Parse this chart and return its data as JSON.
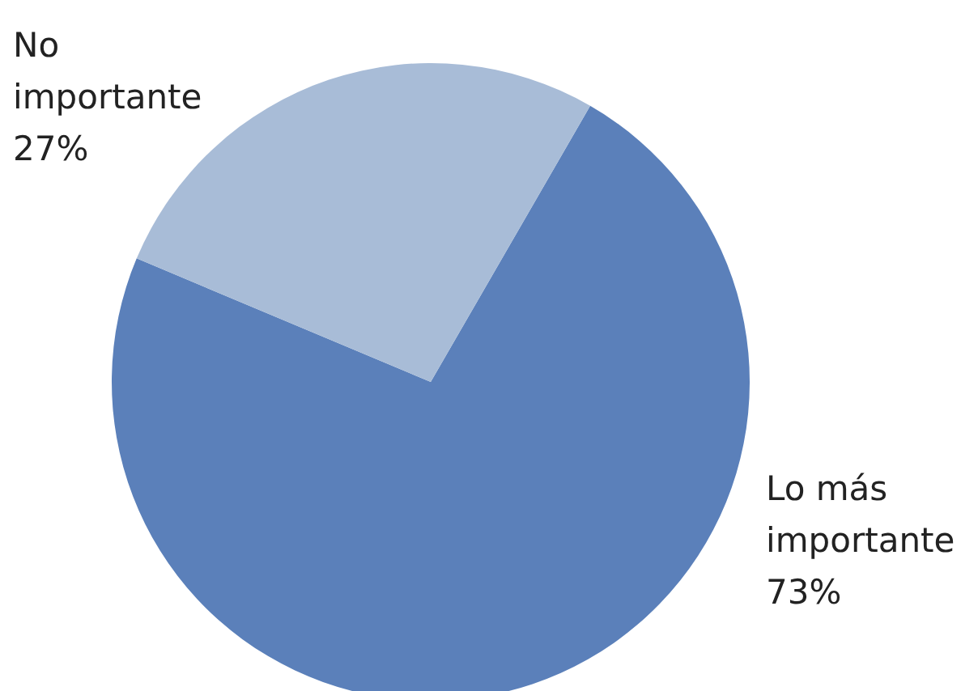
{
  "chart_data": {
    "type": "pie",
    "categories": [
      "Lo más importante",
      "No importante"
    ],
    "values": [
      73,
      27
    ],
    "colors": [
      "#5b80ba",
      "#a8bcd7"
    ],
    "value_labels": [
      "73%",
      "27%"
    ]
  }
}
